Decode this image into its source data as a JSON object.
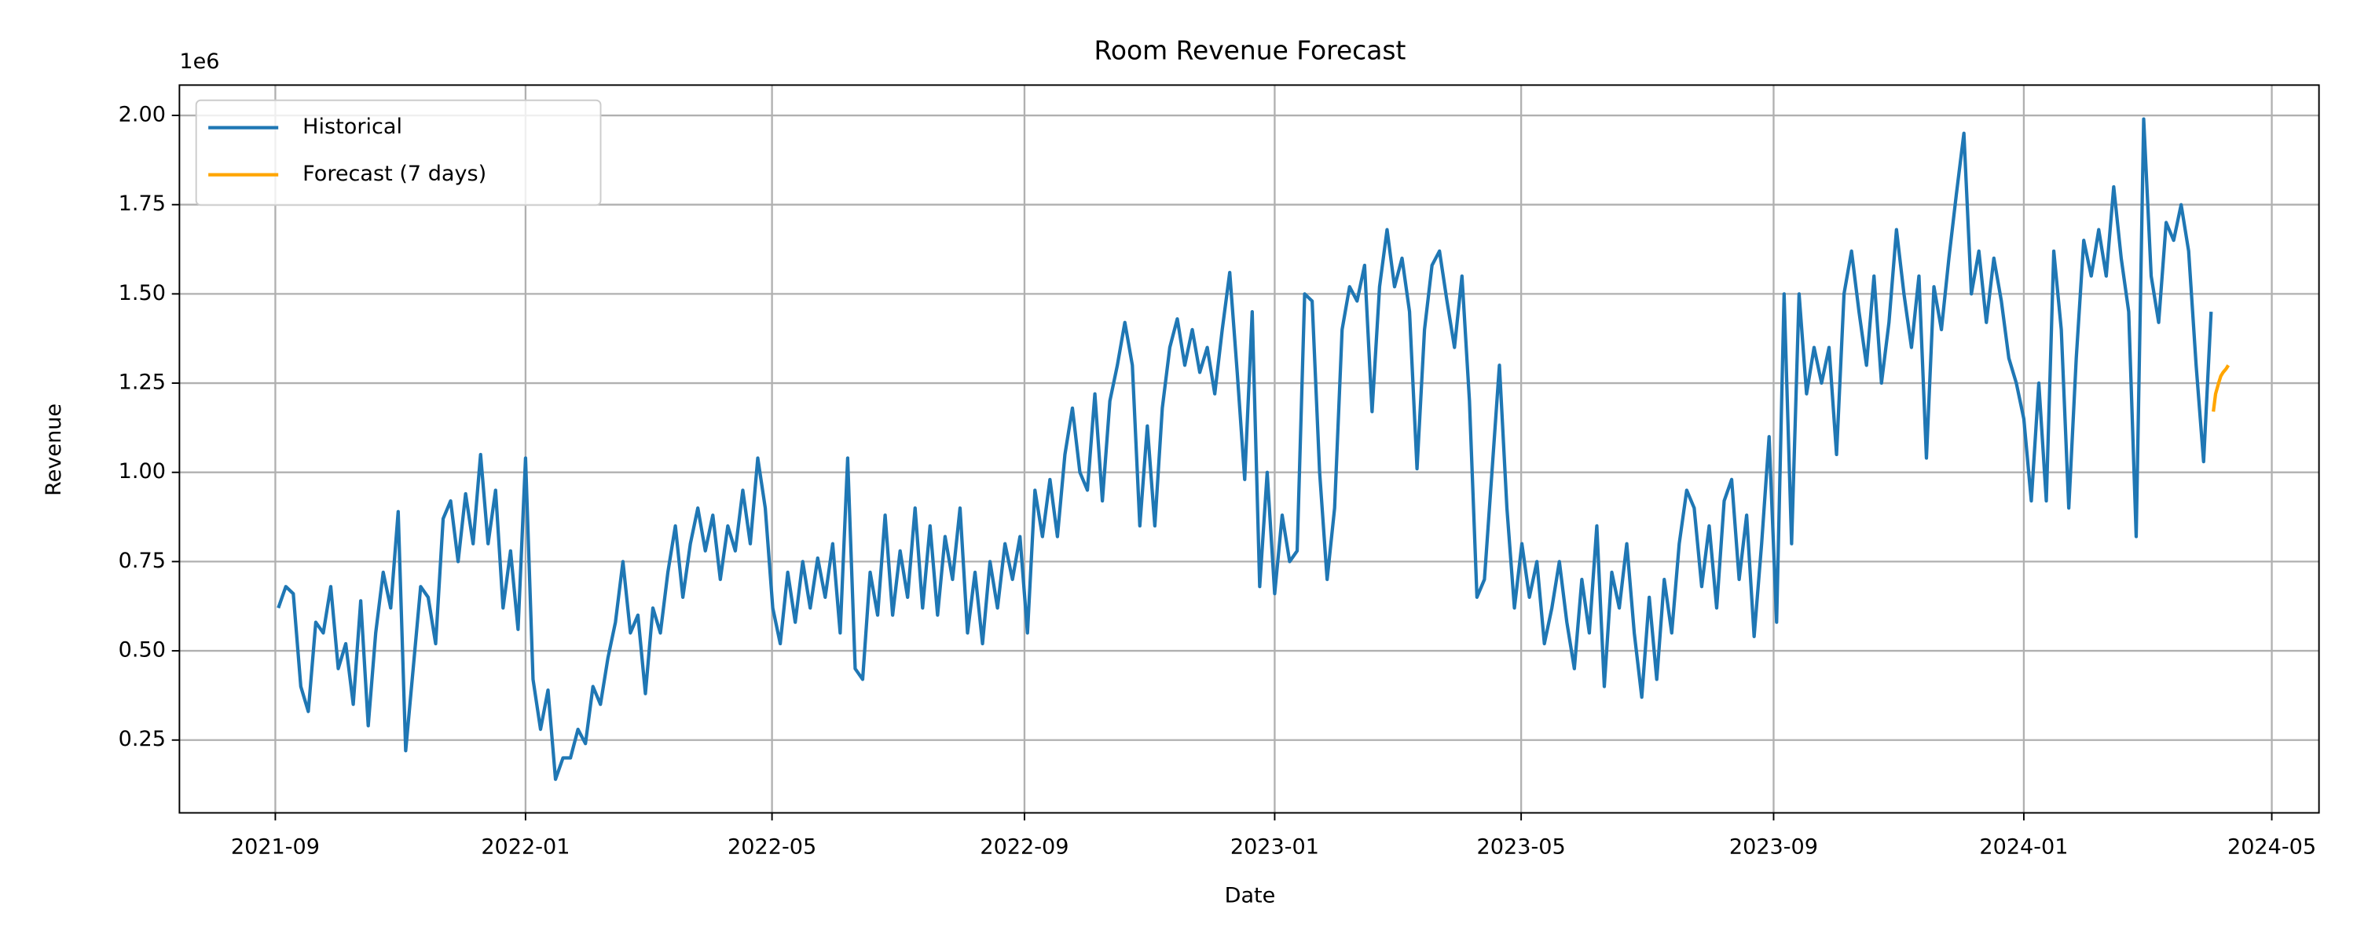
{
  "chart_data": {
    "type": "line",
    "title": "Room Revenue Forecast",
    "xlabel": "Date",
    "ylabel": "Revenue",
    "y_offset_label": "1e6",
    "xlim": [
      2021.538,
      2024.394
    ],
    "ylim": [
      46000,
      2085000
    ],
    "xticks": [
      {
        "value": 2021.666,
        "label": "2021-09"
      },
      {
        "value": 2022,
        "label": "2022-01"
      },
      {
        "value": 2022.329,
        "label": "2022-05"
      },
      {
        "value": 2022.666,
        "label": "2022-09"
      },
      {
        "value": 2023,
        "label": "2023-01"
      },
      {
        "value": 2023.329,
        "label": "2023-05"
      },
      {
        "value": 2023.666,
        "label": "2023-09"
      },
      {
        "value": 2024,
        "label": "2024-01"
      },
      {
        "value": 2024.331,
        "label": "2024-05"
      }
    ],
    "yticks": [
      {
        "value": 250000,
        "label": "0.25"
      },
      {
        "value": 500000,
        "label": "0.50"
      },
      {
        "value": 750000,
        "label": "0.75"
      },
      {
        "value": 1000000,
        "label": "1.00"
      },
      {
        "value": 1250000,
        "label": "1.25"
      },
      {
        "value": 1500000,
        "label": "1.50"
      },
      {
        "value": 1750000,
        "label": "1.75"
      },
      {
        "value": 2000000,
        "label": "2.00"
      }
    ],
    "grid": true,
    "legend": "upper left",
    "series": [
      {
        "name": "Historical",
        "color": "#1f77b4",
        "x": [
          2021.67,
          2021.68,
          2021.69,
          2021.7,
          2021.71,
          2021.72,
          2021.73,
          2021.74,
          2021.75,
          2021.76,
          2021.77,
          2021.78,
          2021.79,
          2021.8,
          2021.81,
          2021.82,
          2021.83,
          2021.84,
          2021.85,
          2021.86,
          2021.87,
          2021.88,
          2021.89,
          2021.9,
          2021.91,
          2021.92,
          2021.93,
          2021.94,
          2021.95,
          2021.96,
          2021.97,
          2021.98,
          2021.99,
          2022.0,
          2022.01,
          2022.02,
          2022.03,
          2022.04,
          2022.05,
          2022.06,
          2022.07,
          2022.08,
          2022.09,
          2022.1,
          2022.11,
          2022.12,
          2022.13,
          2022.14,
          2022.15,
          2022.16,
          2022.17,
          2022.18,
          2022.19,
          2022.2,
          2022.21,
          2022.22,
          2022.23,
          2022.24,
          2022.25,
          2022.26,
          2022.27,
          2022.28,
          2022.29,
          2022.3,
          2022.31,
          2022.32,
          2022.33,
          2022.34,
          2022.35,
          2022.36,
          2022.37,
          2022.38,
          2022.39,
          2022.4,
          2022.41,
          2022.42,
          2022.43,
          2022.44,
          2022.45,
          2022.46,
          2022.47,
          2022.48,
          2022.49,
          2022.5,
          2022.51,
          2022.52,
          2022.53,
          2022.54,
          2022.55,
          2022.56,
          2022.57,
          2022.58,
          2022.59,
          2022.6,
          2022.61,
          2022.62,
          2022.63,
          2022.64,
          2022.65,
          2022.66,
          2022.67,
          2022.68,
          2022.69,
          2022.7,
          2022.71,
          2022.72,
          2022.73,
          2022.74,
          2022.75,
          2022.76,
          2022.77,
          2022.78,
          2022.79,
          2022.8,
          2022.81,
          2022.82,
          2022.83,
          2022.84,
          2022.85,
          2022.86,
          2022.87,
          2022.88,
          2022.89,
          2022.9,
          2022.91,
          2022.92,
          2022.93,
          2022.94,
          2022.95,
          2022.96,
          2022.97,
          2022.98,
          2022.99,
          2023.0,
          2023.01,
          2023.02,
          2023.03,
          2023.04,
          2023.05,
          2023.06,
          2023.07,
          2023.08,
          2023.09,
          2023.1,
          2023.11,
          2023.12,
          2023.13,
          2023.14,
          2023.15,
          2023.16,
          2023.17,
          2023.18,
          2023.19,
          2023.2,
          2023.21,
          2023.22,
          2023.23,
          2023.24,
          2023.25,
          2023.26,
          2023.27,
          2023.28,
          2023.29,
          2023.3,
          2023.31,
          2023.32,
          2023.33,
          2023.34,
          2023.35,
          2023.36,
          2023.37,
          2023.38,
          2023.39,
          2023.4,
          2023.41,
          2023.42,
          2023.43,
          2023.44,
          2023.45,
          2023.46,
          2023.47,
          2023.48,
          2023.49,
          2023.5,
          2023.51,
          2023.52,
          2023.53,
          2023.54,
          2023.55,
          2023.56,
          2023.57,
          2023.58,
          2023.59,
          2023.6,
          2023.61,
          2023.62,
          2023.63,
          2023.64,
          2023.65,
          2023.66,
          2023.67,
          2023.68,
          2023.69,
          2023.7,
          2023.71,
          2023.72,
          2023.73,
          2023.74,
          2023.75,
          2023.76,
          2023.77,
          2023.78,
          2023.79,
          2023.8,
          2023.81,
          2023.82,
          2023.83,
          2023.84,
          2023.85,
          2023.86,
          2023.87,
          2023.88,
          2023.89,
          2023.9,
          2023.91,
          2023.92,
          2023.93,
          2023.94,
          2023.95,
          2023.96,
          2023.97,
          2023.98,
          2023.99,
          2024.0,
          2024.01,
          2024.02,
          2024.03,
          2024.04,
          2024.05,
          2024.06,
          2024.07,
          2024.08,
          2024.09,
          2024.1,
          2024.11,
          2024.12,
          2024.13,
          2024.14,
          2024.15,
          2024.16,
          2024.17,
          2024.18,
          2024.19,
          2024.2,
          2024.21,
          2024.22,
          2024.23,
          2024.24,
          2024.25
        ],
        "values": [
          620000,
          680000,
          660000,
          400000,
          330000,
          580000,
          550000,
          680000,
          450000,
          520000,
          350000,
          640000,
          290000,
          550000,
          720000,
          620000,
          890000,
          220000,
          450000,
          680000,
          650000,
          520000,
          870000,
          920000,
          750000,
          940000,
          800000,
          1050000,
          800000,
          950000,
          620000,
          780000,
          560000,
          1040000,
          420000,
          280000,
          390000,
          140000,
          200000,
          200000,
          280000,
          240000,
          400000,
          350000,
          480000,
          580000,
          750000,
          550000,
          600000,
          380000,
          620000,
          550000,
          720000,
          850000,
          650000,
          800000,
          900000,
          780000,
          880000,
          700000,
          850000,
          780000,
          950000,
          800000,
          1040000,
          900000,
          620000,
          520000,
          720000,
          580000,
          750000,
          620000,
          760000,
          650000,
          800000,
          550000,
          1040000,
          450000,
          420000,
          720000,
          600000,
          880000,
          600000,
          780000,
          650000,
          900000,
          620000,
          850000,
          600000,
          820000,
          700000,
          900000,
          550000,
          720000,
          520000,
          750000,
          620000,
          800000,
          700000,
          820000,
          550000,
          950000,
          820000,
          980000,
          820000,
          1050000,
          1180000,
          1000000,
          950000,
          1220000,
          920000,
          1200000,
          1300000,
          1420000,
          1300000,
          850000,
          1130000,
          850000,
          1180000,
          1350000,
          1430000,
          1300000,
          1400000,
          1280000,
          1350000,
          1220000,
          1400000,
          1560000,
          1280000,
          980000,
          1450000,
          680000,
          1000000,
          660000,
          880000,
          750000,
          780000,
          1500000,
          1480000,
          1000000,
          700000,
          900000,
          1400000,
          1520000,
          1480000,
          1580000,
          1170000,
          1520000,
          1680000,
          1520000,
          1600000,
          1450000,
          1010000,
          1400000,
          1580000,
          1620000,
          1480000,
          1350000,
          1550000,
          1200000,
          650000,
          700000,
          1000000,
          1300000,
          900000,
          620000,
          800000,
          650000,
          750000,
          520000,
          620000,
          750000,
          580000,
          450000,
          700000,
          550000,
          850000,
          400000,
          720000,
          620000,
          800000,
          550000,
          370000,
          650000,
          420000,
          700000,
          550000,
          800000,
          950000,
          900000,
          680000,
          850000,
          620000,
          920000,
          980000,
          700000,
          880000,
          540000,
          800000,
          1100000,
          580000,
          1500000,
          800000,
          1500000,
          1220000,
          1350000,
          1250000,
          1350000,
          1050000,
          1500000,
          1620000,
          1450000,
          1300000,
          1550000,
          1250000,
          1420000,
          1680000,
          1500000,
          1350000,
          1550000,
          1040000,
          1520000,
          1400000,
          1600000,
          1780000,
          1950000,
          1500000,
          1620000,
          1420000,
          1600000,
          1480000,
          1320000,
          1250000,
          1150000,
          920000,
          1250000,
          920000,
          1620000,
          1400000,
          900000,
          1320000,
          1650000,
          1550000,
          1680000,
          1550000,
          1800000,
          1600000,
          1450000,
          820000,
          1990000,
          1550000,
          1420000,
          1700000,
          1650000,
          1750000,
          1620000,
          1300000,
          1030000,
          1450000
        ]
      },
      {
        "name": "Forecast (7 days)",
        "color": "#ffa500",
        "x": [
          2024.253,
          2024.256,
          2024.26,
          2024.263,
          2024.266,
          2024.27,
          2024.273
        ],
        "values": [
          1170000,
          1220000,
          1250000,
          1270000,
          1280000,
          1290000,
          1300000
        ]
      }
    ]
  }
}
